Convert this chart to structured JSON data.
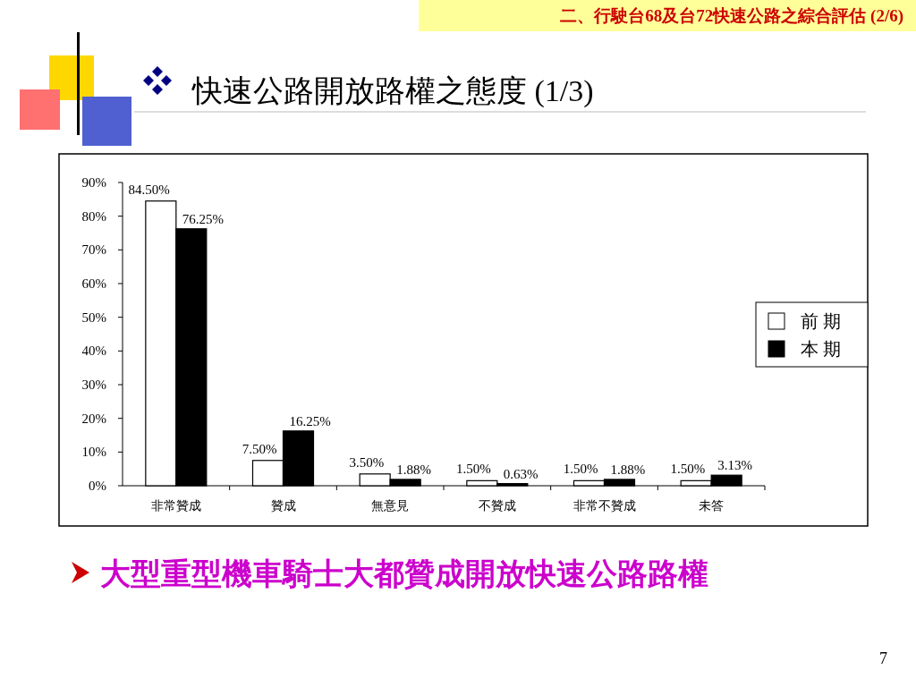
{
  "chart_data": {
    "type": "bar",
    "title": "快速公路開放路權之態度 (1/3)",
    "annotations": [
      "二、行駛台68及台72快速公路之綜合評估 (2/6)",
      "大型重型機車騎士大都贊成開放快速公路路權",
      "7"
    ],
    "categories": [
      "非常贊成",
      "贊成",
      "無意見",
      "不贊成",
      "非常不贊成",
      "未答"
    ],
    "series": [
      {
        "name": "前 期",
        "color": "#ffffff",
        "values": [
          84.5,
          7.5,
          3.5,
          1.5,
          1.5,
          1.5
        ],
        "value_labels": [
          "84.50%",
          "7.50%",
          "3.50%",
          "1.50%",
          "1.50%",
          "1.50%"
        ]
      },
      {
        "name": "本 期",
        "color": "#000000",
        "values": [
          76.25,
          16.25,
          1.88,
          0.63,
          1.88,
          3.13
        ],
        "value_labels": [
          "76.25%",
          "16.25%",
          "1.88%",
          "0.63%",
          "1.88%",
          "3.13%"
        ]
      }
    ],
    "ylim": [
      0,
      90
    ],
    "yticks": [
      {
        "value": 0,
        "label": "0%"
      },
      {
        "value": 10,
        "label": "10%"
      },
      {
        "value": 20,
        "label": "20%"
      },
      {
        "value": 30,
        "label": "30%"
      },
      {
        "value": 40,
        "label": "40%"
      },
      {
        "value": 50,
        "label": "50%"
      },
      {
        "value": 60,
        "label": "60%"
      },
      {
        "value": 70,
        "label": "70%"
      },
      {
        "value": 80,
        "label": "80%"
      },
      {
        "value": 90,
        "label": "90%"
      }
    ],
    "legend": "right",
    "grid": false
  }
}
